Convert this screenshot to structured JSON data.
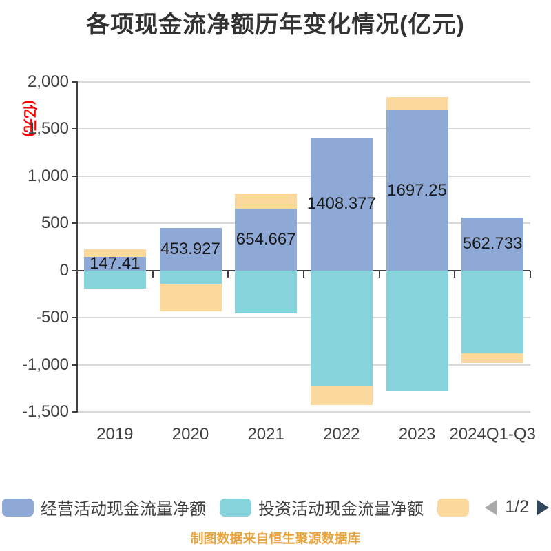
{
  "title": "各项现金流净额历年变化情况(亿元)",
  "y_axis": {
    "unit_label": "(亿元)",
    "unit_color": "#ff0000",
    "tick_labels": [
      "2,000",
      "1,500",
      "1,000",
      "500",
      "0",
      "-500",
      "-1,000",
      "-1,500"
    ],
    "max": 2000,
    "min": -1500,
    "step": 500
  },
  "x_axis": {
    "categories": [
      "2019",
      "2020",
      "2021",
      "2022",
      "2023",
      "2024Q1-Q3"
    ]
  },
  "legend": {
    "items": [
      {
        "label": "经营活动现金流量净额",
        "color": "#8ea9d6"
      },
      {
        "label": "投资活动现金流量净额",
        "color": "#87d3db"
      },
      {
        "label": "",
        "color": "#fbd89b"
      }
    ],
    "pagination": {
      "text": "1/2",
      "prev_color": "#a9a9a9",
      "next_color": "#31475c"
    }
  },
  "caption": "制图数据来自恒生聚源数据库",
  "chart_data": {
    "type": "bar",
    "stacked": true,
    "title": "各项现金流净额历年变化情况(亿元)",
    "ylabel": "(亿元)",
    "ylim": [
      -1500,
      2000
    ],
    "ytick_step": 500,
    "grid": true,
    "legend_position": "bottom",
    "categories": [
      "2019",
      "2020",
      "2021",
      "2022",
      "2023",
      "2024Q1-Q3"
    ],
    "series": [
      {
        "name": "经营活动现金流量净额",
        "color": "#8ea9d6",
        "values": [
          147.41,
          453.927,
          654.667,
          1408.377,
          1697.25,
          562.733
        ],
        "data_labels": [
          "147.41",
          "453.927",
          "654.667",
          "1408.377",
          "1697.25",
          "562.733"
        ]
      },
      {
        "name": "投资活动现金流量净额",
        "color": "#87d3db",
        "values": [
          -190,
          -142,
          -456,
          -1220,
          -1280,
          -880
        ]
      },
      {
        "name": "",
        "color": "#fbd89b",
        "values": [
          74,
          -290,
          160,
          -206,
          140,
          -98
        ]
      }
    ]
  }
}
